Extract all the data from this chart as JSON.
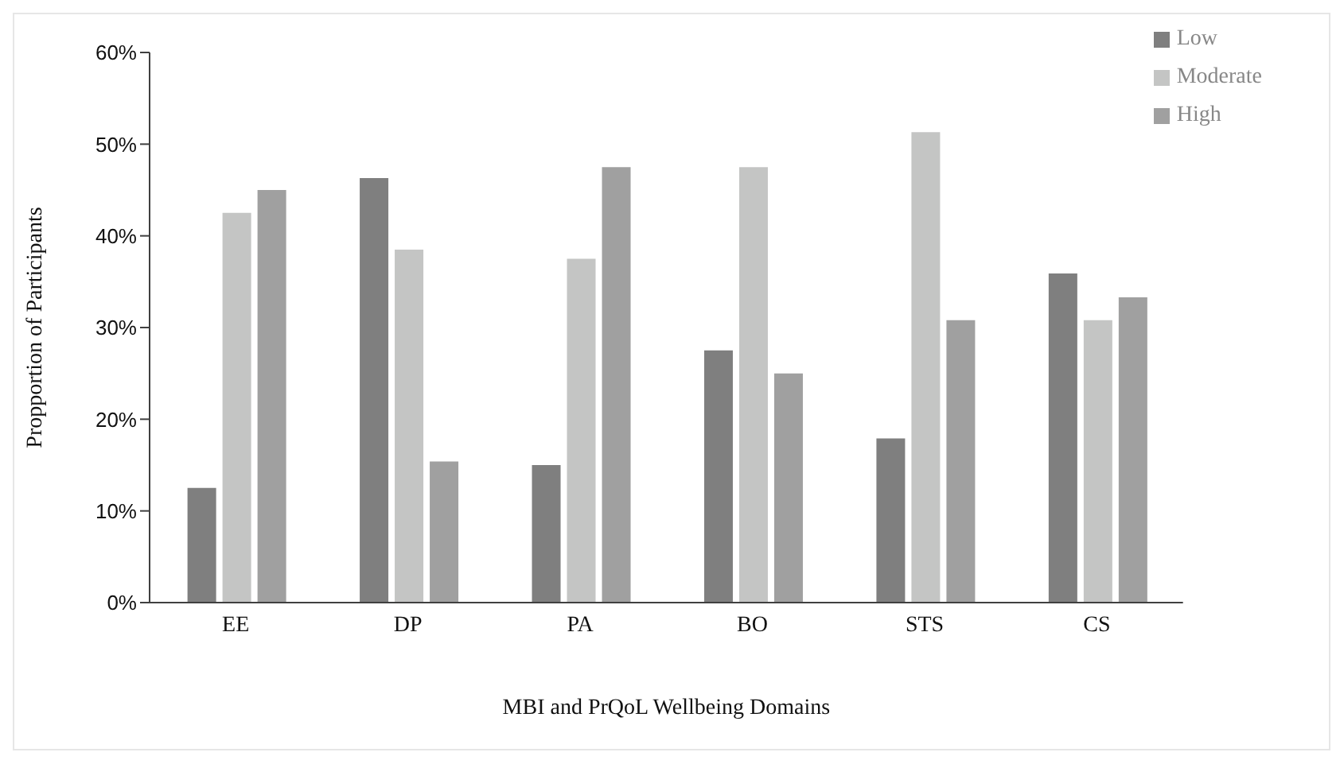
{
  "chart_data": {
    "type": "bar",
    "categories": [
      "EE",
      "DP",
      "PA",
      "BO",
      "STS",
      "CS"
    ],
    "series": [
      {
        "name": "Low",
        "color": "#7f7f7f",
        "values": [
          12.5,
          46.3,
          15,
          27.5,
          17.9,
          35.9
        ]
      },
      {
        "name": "Moderate",
        "color": "#c4c5c4",
        "values": [
          42.5,
          38.5,
          37.5,
          47.5,
          51.3,
          30.8
        ]
      },
      {
        "name": "High",
        "color": "#a0a0a0",
        "values": [
          45,
          15.4,
          47.5,
          25,
          30.8,
          33.3
        ]
      }
    ],
    "xlabel": "MBI and PrQoL Wellbeing Domains",
    "ylabel": "Propportion of Participants",
    "ylim": [
      0,
      60
    ],
    "yticks": [
      {
        "value": 0,
        "label": "0%"
      },
      {
        "value": 10,
        "label": "10%"
      },
      {
        "value": 20,
        "label": "20%"
      },
      {
        "value": 30,
        "label": "30%"
      },
      {
        "value": 40,
        "label": "40%"
      },
      {
        "value": 50,
        "label": "50%"
      },
      {
        "value": 60,
        "label": "60%"
      }
    ],
    "grid": false,
    "legend": "top right"
  }
}
